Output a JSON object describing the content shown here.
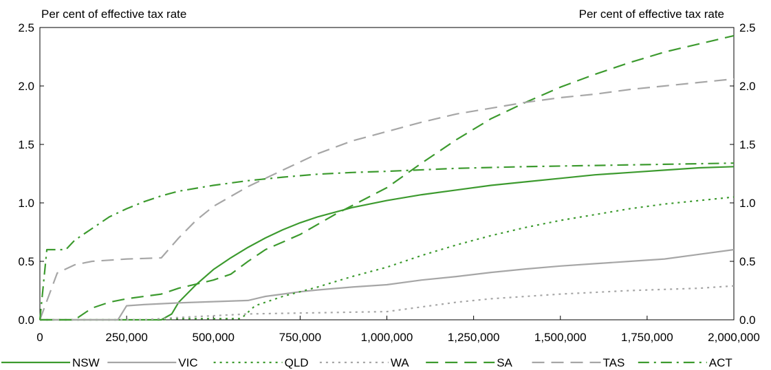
{
  "chart_data": {
    "type": "line",
    "title": "",
    "ylabel_left": "Per cent of effective tax rate",
    "ylabel_right": "Per cent of effective tax rate",
    "xlabel": "",
    "xlim": [
      0,
      2000000
    ],
    "ylim": [
      0,
      2.5
    ],
    "x_ticks": [
      0,
      250000,
      500000,
      750000,
      1000000,
      1250000,
      1500000,
      1750000,
      2000000
    ],
    "x_tick_labels": [
      "0",
      "250,000",
      "500,000",
      "750,000",
      "1,000,000",
      "1,250,000",
      "1,500,000",
      "1,750,000",
      "2,000,000"
    ],
    "y_ticks": [
      0,
      0.5,
      1,
      1.5,
      2,
      2.5
    ],
    "y_tick_labels": [
      "0.0",
      "0.5",
      "1.0",
      "1.5",
      "2.0",
      "2.5"
    ],
    "grid": false,
    "legend_position": "bottom",
    "series": [
      {
        "name": "NSW",
        "color": "#3c9a2e",
        "dash": "solid",
        "x": [
          0,
          350000,
          380000,
          400000,
          450000,
          500000,
          550000,
          600000,
          650000,
          700000,
          750000,
          800000,
          900000,
          1000000,
          1100000,
          1200000,
          1300000,
          1400000,
          1500000,
          1600000,
          1700000,
          1800000,
          1900000,
          2000000
        ],
        "y": [
          0,
          0,
          0.05,
          0.15,
          0.3,
          0.43,
          0.53,
          0.62,
          0.7,
          0.77,
          0.83,
          0.88,
          0.96,
          1.02,
          1.07,
          1.11,
          1.15,
          1.18,
          1.21,
          1.24,
          1.26,
          1.28,
          1.3,
          1.31
        ]
      },
      {
        "name": "VIC",
        "color": "#a6a6a6",
        "dash": "solid",
        "x": [
          0,
          225000,
          250000,
          300000,
          400000,
          500000,
          600000,
          650000,
          700000,
          750000,
          800000,
          900000,
          1000000,
          1100000,
          1200000,
          1300000,
          1400000,
          1500000,
          1600000,
          1700000,
          1800000,
          1900000,
          2000000
        ],
        "y": [
          0,
          0,
          0.12,
          0.13,
          0.145,
          0.155,
          0.165,
          0.2,
          0.22,
          0.24,
          0.255,
          0.28,
          0.3,
          0.34,
          0.37,
          0.405,
          0.435,
          0.46,
          0.48,
          0.5,
          0.52,
          0.56,
          0.6
        ]
      },
      {
        "name": "QLD",
        "color": "#3c9a2e",
        "dash": "dotted",
        "x": [
          0,
          350000,
          400000,
          500000,
          580000,
          620000,
          700000,
          800000,
          900000,
          1000000,
          1100000,
          1200000,
          1300000,
          1400000,
          1500000,
          1600000,
          1700000,
          1800000,
          1900000,
          2000000
        ],
        "y": [
          0,
          0,
          0.01,
          0.01,
          0.01,
          0.12,
          0.2,
          0.28,
          0.37,
          0.45,
          0.55,
          0.64,
          0.72,
          0.79,
          0.85,
          0.9,
          0.95,
          0.99,
          1.02,
          1.05
        ]
      },
      {
        "name": "WA",
        "color": "#a6a6a6",
        "dash": "dotted",
        "x": [
          0,
          300000,
          400000,
          500000,
          600000,
          700000,
          800000,
          900000,
          1000000,
          1100000,
          1200000,
          1300000,
          1400000,
          1500000,
          1600000,
          1700000,
          1800000,
          1900000,
          2000000
        ],
        "y": [
          0,
          0,
          0.02,
          0.035,
          0.05,
          0.055,
          0.06,
          0.065,
          0.07,
          0.11,
          0.15,
          0.18,
          0.2,
          0.22,
          0.235,
          0.25,
          0.26,
          0.27,
          0.29
        ]
      },
      {
        "name": "SA",
        "color": "#3c9a2e",
        "dash": "dashed",
        "x": [
          0,
          100000,
          150000,
          200000,
          250000,
          300000,
          350000,
          400000,
          500000,
          550000,
          600000,
          650000,
          750000,
          850000,
          1000000,
          1100000,
          1200000,
          1300000,
          1400000,
          1500000,
          1600000,
          1700000,
          1800000,
          1900000,
          2000000
        ],
        "y": [
          0,
          0,
          0.1,
          0.15,
          0.18,
          0.2,
          0.22,
          0.27,
          0.34,
          0.39,
          0.5,
          0.6,
          0.73,
          0.9,
          1.13,
          1.34,
          1.54,
          1.72,
          1.86,
          1.99,
          2.1,
          2.2,
          2.29,
          2.36,
          2.43
        ]
      },
      {
        "name": "TAS",
        "color": "#a6a6a6",
        "dash": "dashed",
        "x": [
          0,
          25000,
          50000,
          100000,
          150000,
          200000,
          250000,
          300000,
          350000,
          400000,
          450000,
          500000,
          600000,
          700000,
          800000,
          900000,
          1000000,
          1100000,
          1200000,
          1300000,
          1400000,
          1500000,
          1600000,
          1700000,
          1800000,
          1900000,
          2000000
        ],
        "y": [
          0,
          0.2,
          0.4,
          0.47,
          0.5,
          0.51,
          0.52,
          0.525,
          0.53,
          0.7,
          0.85,
          0.97,
          1.14,
          1.28,
          1.42,
          1.53,
          1.61,
          1.69,
          1.76,
          1.81,
          1.86,
          1.9,
          1.93,
          1.97,
          2.0,
          2.03,
          2.06
        ]
      },
      {
        "name": "ACT",
        "color": "#3c9a2e",
        "dash": "dashdot",
        "x": [
          0,
          20000,
          25000,
          75000,
          100000,
          150000,
          200000,
          250000,
          300000,
          350000,
          400000,
          500000,
          600000,
          700000,
          800000,
          900000,
          1000000,
          1200000,
          1400000,
          1600000,
          1800000,
          2000000
        ],
        "y": [
          0,
          0.6,
          0.6,
          0.6,
          0.68,
          0.78,
          0.88,
          0.95,
          1.01,
          1.06,
          1.1,
          1.15,
          1.19,
          1.22,
          1.245,
          1.26,
          1.27,
          1.295,
          1.31,
          1.32,
          1.33,
          1.34
        ]
      }
    ]
  }
}
